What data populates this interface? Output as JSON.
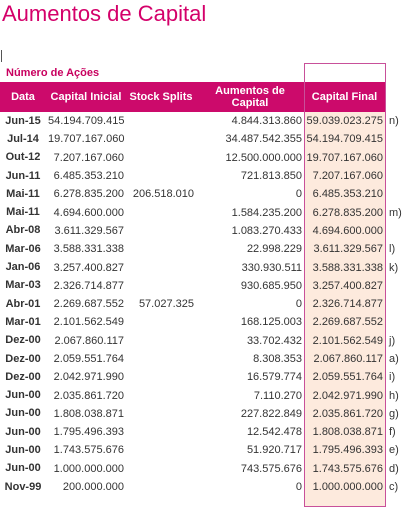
{
  "title": "Aumentos de Capital",
  "subtitle": "Número de Ações",
  "table": {
    "header": [
      "Data",
      "Capital Inicial",
      "Stock Splits",
      "Aumentos de Capital",
      "Capital Final"
    ],
    "rows": [
      {
        "date": "Jun-15",
        "initial": "54.194.709.415",
        "increase": "4.844.313.860",
        "final": "59.039.023.275",
        "note": "n)"
      },
      {
        "date": "Jul-14",
        "initial": "19.707.167.060",
        "increase": "34.487.542.355",
        "final": "54.194.709.415"
      },
      {
        "date": "Out-12",
        "initial": "7.207.167.060",
        "increase": "12.500.000.000",
        "final": "19.707.167.060"
      },
      {
        "date": "Jun-11",
        "initial": "6.485.353.210",
        "increase": "721.813.850",
        "final": "7.207.167.060"
      },
      {
        "date": "Mai-11",
        "initial": "6.278.835.200",
        "splits": "206.518.010",
        "increase": "0",
        "final": "6.485.353.210"
      },
      {
        "date": "Mai-11",
        "initial": "4.694.600.000",
        "increase": "1.584.235.200",
        "final": "6.278.835.200",
        "note": "m)"
      },
      {
        "date": "Abr-08",
        "initial": "3.611.329.567",
        "increase": "1.083.270.433",
        "final": "4.694.600.000"
      },
      {
        "date": "Mar-06",
        "initial": "3.588.331.338",
        "increase": "22.998.229",
        "final": "3.611.329.567",
        "note": "l)"
      },
      {
        "date": "Jan-06",
        "initial": "3.257.400.827",
        "increase": "330.930.511",
        "final": "3.588.331.338",
        "note": "k)"
      },
      {
        "date": "Mar-03",
        "initial": "2.326.714.877",
        "increase": "930.685.950",
        "final": "3.257.400.827"
      },
      {
        "date": "Abr-01",
        "initial": "2.269.687.552",
        "splits": "57.027.325",
        "increase": "0",
        "final": "2.326.714.877"
      },
      {
        "date": "Mar-01",
        "initial": "2.101.562.549",
        "increase": "168.125.003",
        "final": "2.269.687.552"
      },
      {
        "date": "Dez-00",
        "initial": "2.067.860.117",
        "increase": "33.702.432",
        "final": "2.101.562.549",
        "note": "j)"
      },
      {
        "date": "Dez-00",
        "initial": "2.059.551.764",
        "increase": "8.308.353",
        "final": "2.067.860.117",
        "note": "a)"
      },
      {
        "date": "Dez-00",
        "initial": "2.042.971.990",
        "increase": "16.579.774",
        "final": "2.059.551.764",
        "note": "i)"
      },
      {
        "date": "Jun-00",
        "initial": "2.035.861.720",
        "increase": "7.110.270",
        "final": "2.042.971.990",
        "note": "h)"
      },
      {
        "date": "Jun-00",
        "initial": "1.808.038.871",
        "increase": "227.822.849",
        "final": "2.035.861.720",
        "note": "g)"
      },
      {
        "date": "Jun-00",
        "initial": "1.795.496.393",
        "increase": "12.542.478",
        "final": "1.808.038.871",
        "note": "f)"
      },
      {
        "date": "Jun-00",
        "initial": "1.743.575.676",
        "increase": "51.920.717",
        "final": "1.795.496.393",
        "note": "e)"
      },
      {
        "date": "Jun-00",
        "initial": "1.000.000.000",
        "increase": "743.575.676",
        "final": "1.743.575.676",
        "note": "d)"
      },
      {
        "date": "Nov-99",
        "initial": "200.000.000",
        "increase": "0",
        "final": "1.000.000.000",
        "note": "c)"
      }
    ]
  }
}
